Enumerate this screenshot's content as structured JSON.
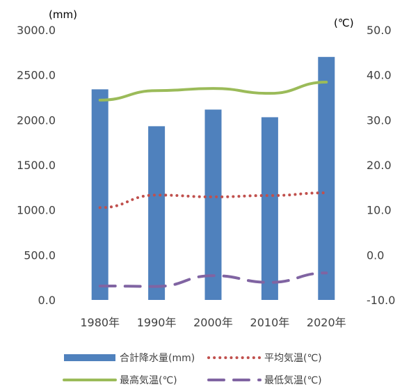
{
  "chart_data": {
    "type": "bar",
    "categories": [
      "1980年",
      "1990年",
      "2000年",
      "2010年",
      "2020年"
    ],
    "left_axis": {
      "unit": "(mm)",
      "ylim": [
        0,
        3000
      ],
      "ticks": [
        "3000.0",
        "2500.0",
        "2000.0",
        "1500.0",
        "1000.0",
        "500.0",
        "0.0"
      ],
      "tick_values": [
        3000,
        2500,
        2000,
        1500,
        1000,
        500,
        0
      ]
    },
    "right_axis": {
      "unit": "(℃)",
      "ylim": [
        -10,
        50
      ],
      "ticks": [
        "50.0",
        "40.0",
        "30.0",
        "20.0",
        "10.0",
        "0.0",
        "-10.0"
      ],
      "tick_values": [
        50,
        40,
        30,
        20,
        10,
        0,
        -10
      ]
    },
    "series": [
      {
        "name": "合計降水量(mm)",
        "type": "bar",
        "axis": "left",
        "color": "#4f81bd",
        "values": [
          2340,
          1930,
          2115,
          2030,
          2700
        ]
      },
      {
        "name": "平均気温(℃)",
        "type": "line",
        "style": "dotted",
        "axis": "right",
        "color": "#c0504d",
        "values": [
          10.5,
          13.3,
          12.9,
          13.2,
          13.8
        ]
      },
      {
        "name": "最高気温(℃)",
        "type": "line",
        "style": "solid",
        "axis": "right",
        "color": "#9bbb59",
        "values": [
          34.4,
          36.5,
          37.0,
          35.9,
          38.4
        ]
      },
      {
        "name": "最低気温(℃)",
        "type": "line",
        "style": "dashed",
        "axis": "right",
        "color": "#8064a2",
        "values": [
          -6.9,
          -7.0,
          -4.6,
          -6.1,
          -4.0
        ]
      }
    ],
    "grid": false,
    "legend_position": "bottom"
  }
}
